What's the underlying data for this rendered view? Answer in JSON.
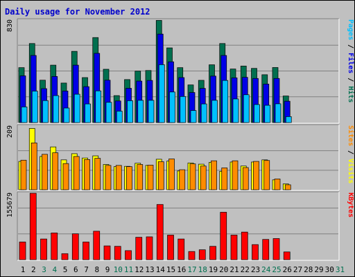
{
  "title": "Daily usage for November 2012",
  "colors": {
    "hits": "#006f4f",
    "files": "#0000e6",
    "pages": "#00c0ff",
    "visits": "#ffff00",
    "sites": "#ff8c00",
    "kbytes": "#ff0000",
    "grid": "#808080",
    "plot_bg": "#c0c0c0",
    "weekend_day": "#006f4f",
    "weekday": "#000000"
  },
  "chart_data": [
    {
      "type": "bar",
      "name": "hits-files-pages",
      "ymax_label": "830",
      "ylim": [
        0,
        830
      ],
      "right_label": [
        {
          "text": "Pages",
          "color": "#00c0ff"
        },
        {
          "text": " / ",
          "color": "#000000"
        },
        {
          "text": "Files",
          "color": "#0000e6"
        },
        {
          "text": " / ",
          "color": "#000000"
        },
        {
          "text": "Hits",
          "color": "#006f4f"
        }
      ],
      "x": [
        1,
        2,
        3,
        4,
        5,
        6,
        7,
        8,
        9,
        10,
        11,
        12,
        13,
        14,
        15,
        16,
        17,
        18,
        19,
        20,
        21,
        22,
        23,
        24,
        25,
        26
      ],
      "series": [
        {
          "name": "Hits",
          "values": [
            442,
            636,
            341,
            462,
            318,
            573,
            362,
            684,
            429,
            217,
            346,
            414,
            419,
            822,
            601,
            442,
            303,
            340,
            465,
            636,
            431,
            455,
            436,
            385,
            443,
            214
          ]
        },
        {
          "name": "Files",
          "values": [
            376,
            540,
            273,
            371,
            254,
            462,
            289,
            557,
            341,
            174,
            276,
            334,
            339,
            712,
            489,
            362,
            242,
            275,
            374,
            540,
            360,
            364,
            355,
            310,
            355,
            172
          ]
        },
        {
          "name": "Pages",
          "values": [
            126,
            253,
            177,
            217,
            117,
            228,
            150,
            255,
            163,
            92,
            176,
            179,
            179,
            466,
            246,
            210,
            97,
            150,
            179,
            339,
            190,
            224,
            145,
            139,
            151,
            48
          ]
        }
      ]
    },
    {
      "type": "bar",
      "name": "visits-sites",
      "ymax_label": "209",
      "ylim": [
        0,
        209
      ],
      "right_label": [
        {
          "text": "Sites",
          "color": "#ff8c00"
        },
        {
          "text": " / ",
          "color": "#000000"
        },
        {
          "text": "Visits",
          "color": "#ffff00"
        }
      ],
      "x": [
        1,
        2,
        3,
        4,
        5,
        6,
        7,
        8,
        9,
        10,
        11,
        12,
        13,
        14,
        15,
        16,
        17,
        18,
        19,
        20,
        21,
        22,
        23,
        24,
        25,
        26
      ],
      "series": [
        {
          "name": "Visits",
          "values": [
            92,
            199,
            108,
            139,
            97,
            117,
            103,
            110,
            82,
            75,
            76,
            86,
            79,
            99,
            93,
            61,
            87,
            83,
            89,
            60,
            90,
            77,
            90,
            97,
            32,
            19
          ]
        },
        {
          "name": "Sites",
          "values": [
            96,
            152,
            115,
            120,
            85,
            108,
            98,
            102,
            79,
            79,
            75,
            82,
            80,
            91,
            100,
            65,
            84,
            77,
            94,
            71,
            94,
            72,
            92,
            95,
            35,
            16
          ]
        }
      ]
    },
    {
      "type": "bar",
      "name": "kbytes",
      "ymax_label": "155679",
      "ylim": [
        0,
        155679
      ],
      "right_label": [
        {
          "text": "KBytes",
          "color": "#ff0000"
        }
      ],
      "x": [
        1,
        2,
        3,
        4,
        5,
        6,
        7,
        8,
        9,
        10,
        11,
        12,
        13,
        14,
        15,
        16,
        17,
        18,
        19,
        20,
        21,
        22,
        23,
        24,
        25,
        26
      ],
      "series": [
        {
          "name": "KBytes",
          "values": [
            41000,
            154000,
            48000,
            62000,
            14000,
            60000,
            41000,
            66000,
            32000,
            31000,
            21000,
            52000,
            53000,
            128000,
            57000,
            48000,
            19000,
            23000,
            31000,
            110000,
            57000,
            64000,
            35000,
            47000,
            49000,
            18000
          ]
        }
      ]
    }
  ],
  "x_axis": {
    "labels": [
      "1",
      "2",
      "3",
      "4",
      "5",
      "6",
      "7",
      "8",
      "9",
      "10",
      "11",
      "12",
      "13",
      "14",
      "15",
      "16",
      "17",
      "18",
      "19",
      "20",
      "21",
      "22",
      "23",
      "24",
      "25",
      "26",
      "27",
      "28",
      "29",
      "30",
      "31"
    ],
    "weekend_days": [
      3,
      4,
      10,
      11,
      17,
      18,
      24,
      25,
      31
    ]
  }
}
